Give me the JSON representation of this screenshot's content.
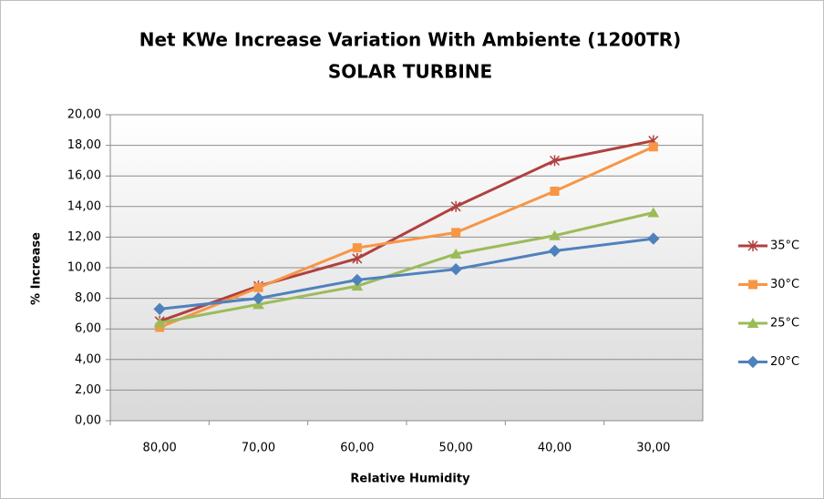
{
  "chart_data": {
    "type": "line",
    "title": "Net KWe Increase Variation With Ambiente (1200TR)",
    "subtitle": "SOLAR TURBINE",
    "x_label": "Relative Humidity",
    "y_label": "% Increase",
    "categories": [
      "80,00",
      "70,00",
      "60,00",
      "50,00",
      "40,00",
      "30,00"
    ],
    "series": [
      {
        "name": "35°C",
        "color": "#b0403f",
        "marker": "star",
        "values": [
          6.5,
          8.8,
          10.6,
          14.0,
          17.0,
          18.3
        ]
      },
      {
        "name": "30°C",
        "color": "#f79646",
        "marker": "square",
        "values": [
          6.1,
          8.7,
          11.3,
          12.3,
          15.0,
          17.9
        ]
      },
      {
        "name": "25°C",
        "color": "#9bbb59",
        "marker": "triangle",
        "values": [
          6.4,
          7.6,
          8.8,
          10.9,
          12.1,
          13.6
        ]
      },
      {
        "name": "20°C",
        "color": "#4f81bd",
        "marker": "diamond",
        "values": [
          7.3,
          8.0,
          9.2,
          9.9,
          11.1,
          11.9
        ]
      }
    ],
    "ylim": [
      0,
      20
    ],
    "yticks": [
      {
        "value": 0,
        "label": "0,00"
      },
      {
        "value": 2,
        "label": "2,00"
      },
      {
        "value": 4,
        "label": "4,00"
      },
      {
        "value": 6,
        "label": "6,00"
      },
      {
        "value": 8,
        "label": "8,00"
      },
      {
        "value": 10,
        "label": "10,00"
      },
      {
        "value": 12,
        "label": "12,00"
      },
      {
        "value": 14,
        "label": "14,00"
      },
      {
        "value": 16,
        "label": "16,00"
      },
      {
        "value": 18,
        "label": "18,00"
      },
      {
        "value": 20,
        "label": "20,00"
      }
    ],
    "grid": true,
    "legend": "right"
  }
}
